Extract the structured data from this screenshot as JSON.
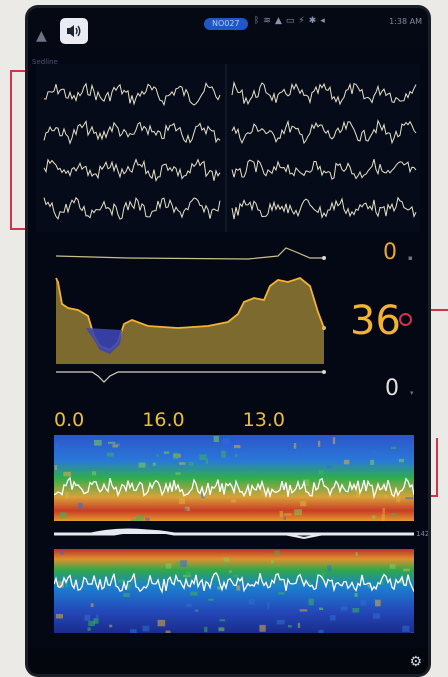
{
  "status_bar": {
    "badge": "NO027",
    "icons": [
      "bluetooth-icon",
      "wifi-icon",
      "triangle-icon",
      "battery-icon",
      "plug-icon",
      "star-icon",
      "speaker-icon"
    ],
    "time": "1:38 AM"
  },
  "eeg": {
    "section_label": "Sedline"
  },
  "metrics": {
    "top_value": "0",
    "main_value": "36",
    "bottom_value": "0"
  },
  "readouts": [
    "0.0",
    "16.0",
    "13.0"
  ],
  "spectrogram": {
    "side_value": "142"
  },
  "colors": {
    "accent_red": "#d0344c",
    "value_yellow": "#f2b233",
    "trend_blue": "#3c46b0",
    "background": "#040814"
  }
}
